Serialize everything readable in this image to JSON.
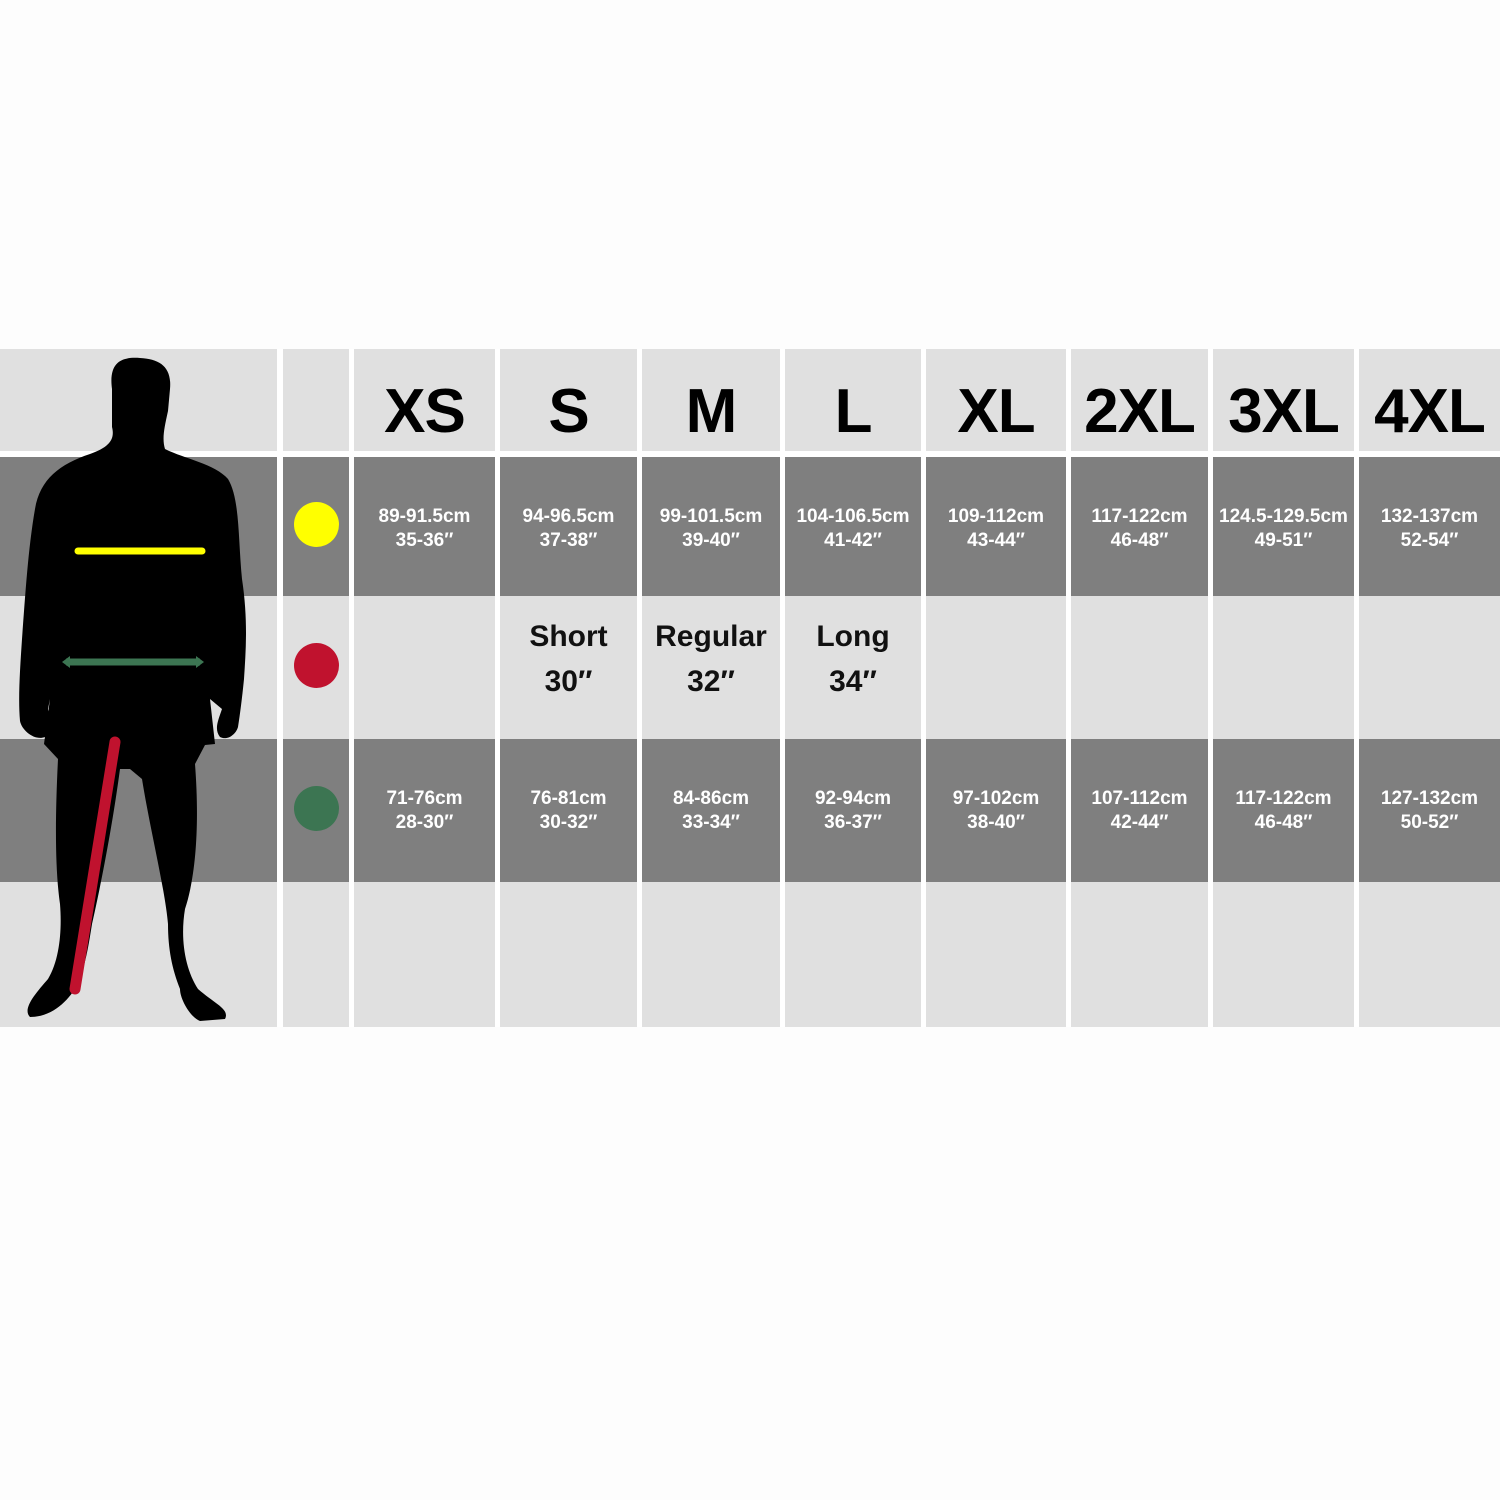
{
  "sizes": [
    "XS",
    "S",
    "M",
    "L",
    "XL",
    "2XL",
    "3XL",
    "4XL"
  ],
  "rows": [
    {
      "icon": "yellow-dot-icon",
      "color": "#ffff00",
      "cells": [
        [
          "89-91.5cm",
          "35-36″"
        ],
        [
          "94-96.5cm",
          "37-38″"
        ],
        [
          "99-101.5cm",
          "39-40″"
        ],
        [
          "104-106.5cm",
          "41-42″"
        ],
        [
          "109-112cm",
          "43-44″"
        ],
        [
          "117-122cm",
          "46-48″"
        ],
        [
          "124.5-129.5cm",
          "49-51″"
        ],
        [
          "132-137cm",
          "52-54″"
        ]
      ]
    },
    {
      "icon": "red-dot-icon",
      "color": "#c0122e",
      "cells": [
        [
          "",
          ""
        ],
        [
          "Short",
          "30″"
        ],
        [
          "Regular",
          "32″"
        ],
        [
          "Long",
          "34″"
        ],
        [
          "",
          ""
        ],
        [
          "",
          ""
        ],
        [
          "",
          ""
        ],
        [
          "",
          ""
        ]
      ]
    },
    {
      "icon": "green-dot-icon",
      "color": "#3c7552",
      "cells": [
        [
          "71-76cm",
          "28-30″"
        ],
        [
          "76-81cm",
          "30-32″"
        ],
        [
          "84-86cm",
          "33-34″"
        ],
        [
          "92-94cm",
          "36-37″"
        ],
        [
          "97-102cm",
          "38-40″"
        ],
        [
          "107-112cm",
          "42-44″"
        ],
        [
          "117-122cm",
          "46-48″"
        ],
        [
          "127-132cm",
          "50-52″"
        ]
      ]
    }
  ],
  "colors": {
    "dark_band": "#7f7f7f",
    "light_band": "#e0e0e0",
    "chest_line": "#ffff00",
    "waist_line": "#3c7552",
    "inseam_line": "#c0122e"
  }
}
